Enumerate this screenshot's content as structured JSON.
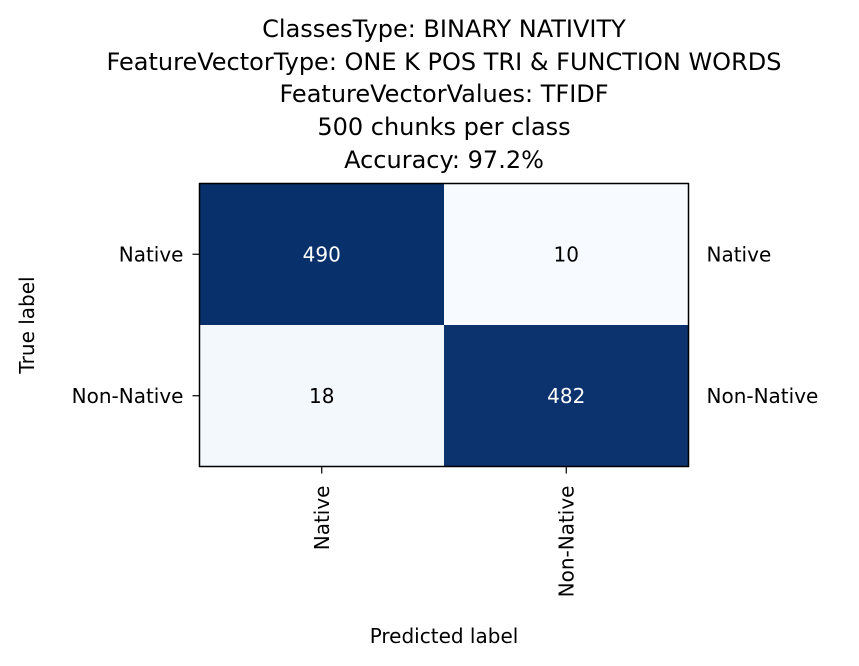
{
  "chart_data": {
    "type": "heatmap",
    "title_lines": [
      "ClassesType: BINARY NATIVITY",
      "FeatureVectorType: ONE K POS TRI & FUNCTION WORDS",
      "FeatureVectorValues: TFIDF",
      "500 chunks per class",
      "Accuracy: 97.2%"
    ],
    "xlabel": "Predicted label",
    "ylabel": "True label",
    "x_categories": [
      "Native",
      "Non-Native"
    ],
    "y_categories": [
      "Native",
      "Non-Native"
    ],
    "right_labels": [
      "Native",
      "Non-Native"
    ],
    "matrix": [
      [
        490,
        10
      ],
      [
        18,
        482
      ]
    ],
    "colormap": "Blues",
    "vmin": 10,
    "vmax": 490,
    "colors": {
      "low": "#f7fbff",
      "high": "#08306b",
      "text_on_dark": "#ffffff",
      "text_on_light": "#000000"
    },
    "grid": false
  }
}
